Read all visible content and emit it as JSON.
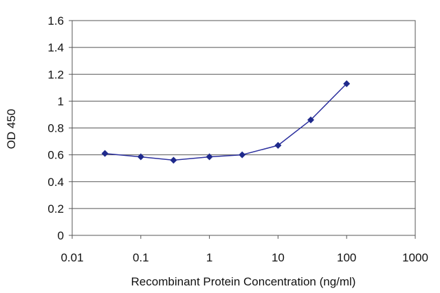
{
  "chart_data": {
    "type": "line",
    "title": "",
    "xlabel": "Recombinant Protein Concentration (ng/ml)",
    "ylabel": "OD 450",
    "xscale": "log",
    "xlim": [
      0.01,
      1000
    ],
    "ylim": [
      0,
      1.6
    ],
    "x_ticks": [
      0.01,
      0.1,
      1,
      10,
      100,
      1000
    ],
    "x_tick_labels": [
      "0.01",
      "0.1",
      "1",
      "10",
      "100",
      "1000"
    ],
    "y_ticks": [
      0,
      0.2,
      0.4,
      0.6,
      0.8,
      1,
      1.2,
      1.4,
      1.6
    ],
    "y_tick_labels": [
      "0",
      "0.2",
      "0.4",
      "0.6",
      "0.8",
      "1",
      "1.2",
      "1.4",
      "1.6"
    ],
    "grid": "horizontal",
    "legend": "none",
    "series": [
      {
        "color": "#2b2f9e",
        "x": [
          0.03,
          0.1,
          0.3,
          1,
          3,
          10,
          30,
          100
        ],
        "y": [
          0.61,
          0.585,
          0.56,
          0.585,
          0.6,
          0.67,
          0.86,
          1.13
        ]
      }
    ],
    "colors": {
      "line": "#2b2f9e",
      "marker": "#1f2a8c",
      "grid": "#555555",
      "frame": "#555555"
    }
  }
}
